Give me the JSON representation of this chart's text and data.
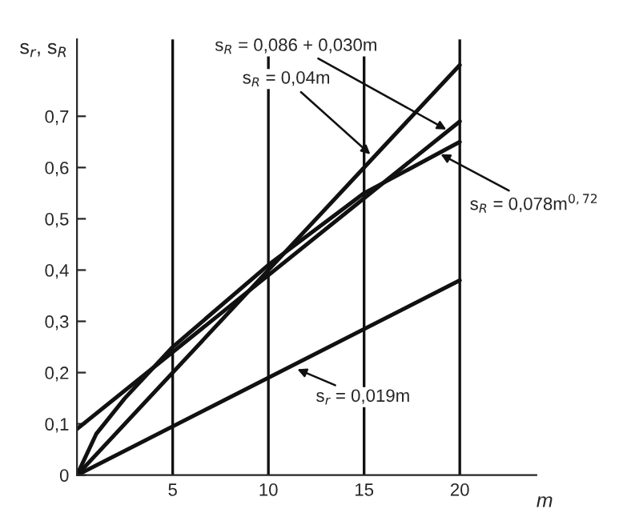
{
  "chart_data": {
    "type": "line",
    "xlabel": "m",
    "ylabel": "s$_{r}$, s$_{R}$",
    "series": [
      {
        "x": [
          0,
          20
        ],
        "values": [
          0.09,
          0.69
        ],
        "color": "#111111"
      },
      {
        "x": [
          0,
          20
        ],
        "values": [
          0,
          0.8
        ],
        "color": "#111111"
      },
      {
        "x": [
          0,
          1,
          2.5,
          5,
          10,
          15,
          20
        ],
        "values": [
          0,
          0.08,
          0.15,
          0.25,
          0.41,
          0.55,
          0.65
        ],
        "color": "#111111"
      },
      {
        "x": [
          0,
          20
        ],
        "values": [
          0,
          0.38
        ],
        "color": "#111111"
      }
    ],
    "xlim": [
      0,
      24
    ],
    "ylim": [
      0,
      0.85
    ],
    "xticks": [
      5,
      10,
      15,
      20
    ],
    "yticks": [
      {
        "value": 0,
        "label": "0"
      },
      {
        "value": 0.1,
        "label": "0,1"
      },
      {
        "value": 0.2,
        "label": "0,2"
      },
      {
        "value": 0.3,
        "label": "0,3"
      },
      {
        "value": 0.4,
        "label": "0,4"
      },
      {
        "value": 0.5,
        "label": "0,5"
      },
      {
        "value": 0.6,
        "label": "0,6"
      },
      {
        "value": 0.7,
        "label": "0,7"
      }
    ],
    "grid": "x",
    "marker": "none",
    "line_style": "solid",
    "annotations": [
      {
        "text": "s$_{R}$ = 0,086 + 0,030m",
        "x": 19.5,
        "y": 0.67
      },
      {
        "text": "s$_{R}$ = 0,04m",
        "x": 15.5,
        "y": 0.62
      },
      {
        "text": "s$_{R}$ = 0,078m$^{0,72}$",
        "x": 18.8,
        "y": 0.63
      },
      {
        "text": "s$_{r}$ = 0,019m",
        "x": 11.3,
        "y": 0.21
      }
    ]
  }
}
